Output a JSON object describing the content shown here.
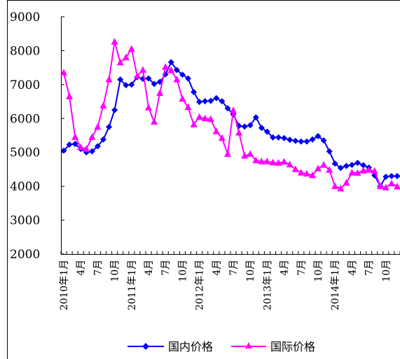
{
  "chart_data": {
    "type": "line",
    "title": "",
    "xlabel": "",
    "ylabel": "",
    "ylim": [
      2000,
      9000
    ],
    "yticks": [
      2000,
      3000,
      4000,
      5000,
      6000,
      7000,
      8000,
      9000
    ],
    "ytick_labels": [
      "2000",
      "3000",
      "4000",
      "5000",
      "6000",
      "7000",
      "8000",
      "9000"
    ],
    "grid": false,
    "legend_position": "bottom",
    "months": 60,
    "xtick_labels": [
      "2010年1月",
      "4月",
      "7月",
      "10月",
      "2011年1月",
      "4月",
      "7月",
      "10月",
      "2012年1月",
      "4月",
      "7月",
      "10月",
      "2013年1月",
      "4月",
      "7月",
      "10月",
      "2014年1月",
      "4月",
      "7月",
      "10月"
    ],
    "series": [
      {
        "name": "国内价格",
        "color": "#0000ee",
        "marker": "diamond",
        "values": [
          5050,
          5230,
          5250,
          5100,
          5000,
          5030,
          5180,
          5380,
          5750,
          6250,
          7150,
          6980,
          7000,
          7220,
          7170,
          7180,
          7020,
          7080,
          7300,
          7660,
          7430,
          7290,
          7180,
          6780,
          6490,
          6510,
          6520,
          6600,
          6510,
          6300,
          6120,
          5780,
          5760,
          5800,
          6030,
          5720,
          5610,
          5440,
          5440,
          5420,
          5370,
          5340,
          5320,
          5320,
          5380,
          5480,
          5350,
          5030,
          4670,
          4540,
          4600,
          4630,
          4690,
          4620,
          4550,
          4320,
          4000,
          4280,
          4300,
          4300
        ]
      },
      {
        "name": "国际价格",
        "color": "#ff00ff",
        "marker": "triangle",
        "values": [
          7350,
          6650,
          5450,
          5150,
          5100,
          5450,
          5750,
          6380,
          7150,
          8260,
          7650,
          7800,
          8050,
          7250,
          7430,
          6320,
          5900,
          6750,
          7520,
          7420,
          7150,
          6580,
          6330,
          5820,
          6040,
          6000,
          5980,
          5620,
          5420,
          4950,
          6240,
          5580,
          4900,
          4950,
          4760,
          4730,
          4730,
          4700,
          4690,
          4720,
          4640,
          4500,
          4400,
          4370,
          4320,
          4520,
          4630,
          4480,
          4000,
          3930,
          4100,
          4400,
          4390,
          4460,
          4480,
          4450,
          4000,
          3960,
          4080,
          3990
        ]
      }
    ]
  }
}
